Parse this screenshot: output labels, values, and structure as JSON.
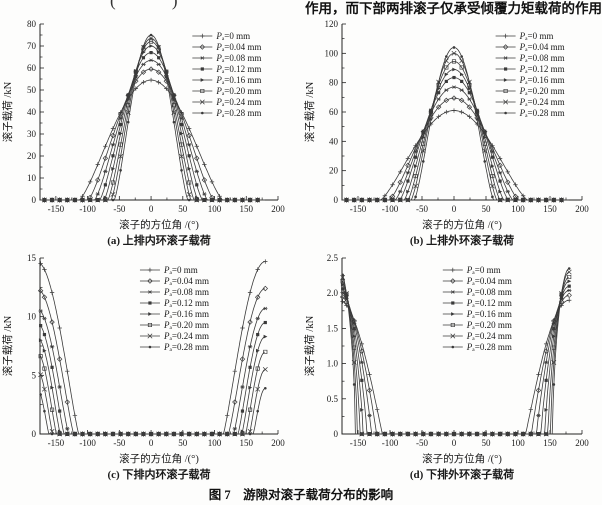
{
  "page": {
    "top_text": "作用，而下部两排滚子仅承受倾覆力矩载荷的作用",
    "top_left_fragment": "(    )",
    "figure_caption": "图 7　游隙对滚子载荷分布的影响"
  },
  "chart_data": [
    {
      "id": "a",
      "type": "line",
      "model": "bell",
      "caption": "(a) 上排内环滚子载荷",
      "xlabel": "滚子的方位角 /(°)",
      "ylabel": "滚子载荷 /kN",
      "xlim": [
        -175,
        200
      ],
      "ylim": [
        0,
        80
      ],
      "xticks": [
        -150,
        -100,
        -50,
        0,
        50,
        100,
        150,
        200
      ],
      "xtick_labels": [
        "-150",
        "-100",
        "-50",
        "0",
        "50",
        "100",
        "150",
        "200"
      ],
      "yticks": [
        0,
        10,
        20,
        30,
        40,
        50,
        60,
        70,
        80
      ],
      "ytick_labels": [
        "0",
        "10",
        "20",
        "30",
        "40",
        "50",
        "60",
        "70",
        "80"
      ],
      "legend_pos": "right",
      "grid": false,
      "series": [
        {
          "name": "Pₐ=0 mm",
          "marker": "plus",
          "peak": 54.5,
          "half_width": 113,
          "exp": 1.3
        },
        {
          "name": "Pₐ=0.04 mm",
          "marker": "odiamond",
          "peak": 59.5,
          "half_width": 99,
          "exp": 1.3
        },
        {
          "name": "Pₐ=0.08 mm",
          "marker": "asterisk",
          "peak": 63.5,
          "half_width": 89,
          "exp": 1.3
        },
        {
          "name": "Pₐ=0.12 mm",
          "marker": "fsquare",
          "peak": 67,
          "half_width": 81,
          "exp": 1.3
        },
        {
          "name": "Pₐ=0.16 mm",
          "marker": "rtri",
          "peak": 70,
          "half_width": 74,
          "exp": 1.3
        },
        {
          "name": "Pₐ=0.20 mm",
          "marker": "osquare",
          "peak": 72,
          "half_width": 68,
          "exp": 1.3
        },
        {
          "name": "Pₐ=0.24 mm",
          "marker": "xcross",
          "peak": 73.5,
          "half_width": 63,
          "exp": 1.3
        },
        {
          "name": "Pₐ=0.28 mm",
          "marker": "fcircle",
          "peak": 75,
          "half_width": 58,
          "exp": 1.3
        }
      ]
    },
    {
      "id": "b",
      "type": "line",
      "model": "bell",
      "caption": "(b) 上排外环滚子载荷",
      "xlabel": "滚子的方位角 /(°)",
      "ylabel": "滚子载荷 /kN",
      "xlim": [
        -175,
        200
      ],
      "ylim": [
        0,
        120
      ],
      "xticks": [
        -150,
        -100,
        -50,
        0,
        50,
        100,
        150,
        200
      ],
      "xtick_labels": [
        "-150",
        "-100",
        "-50",
        "0",
        "50",
        "100",
        "150",
        "200"
      ],
      "yticks": [
        0,
        20,
        40,
        60,
        80,
        100,
        120
      ],
      "ytick_labels": [
        "0",
        "20",
        "40",
        "60",
        "80",
        "100",
        "120"
      ],
      "legend_pos": "right",
      "grid": false,
      "series": [
        {
          "name": "Pₐ=0 mm",
          "marker": "plus",
          "peak": 61,
          "half_width": 115,
          "exp": 1.3
        },
        {
          "name": "Pₐ=0.04 mm",
          "marker": "odiamond",
          "peak": 69.5,
          "half_width": 101,
          "exp": 1.3
        },
        {
          "name": "Pₐ=0.08 mm",
          "marker": "asterisk",
          "peak": 77,
          "half_width": 92,
          "exp": 1.3
        },
        {
          "name": "Pₐ=0.12 mm",
          "marker": "fsquare",
          "peak": 83.5,
          "half_width": 85,
          "exp": 1.3
        },
        {
          "name": "Pₐ=0.16 mm",
          "marker": "rtri",
          "peak": 89,
          "half_width": 78,
          "exp": 1.3
        },
        {
          "name": "Pₐ=0.20 mm",
          "marker": "osquare",
          "peak": 94.5,
          "half_width": 72,
          "exp": 1.3
        },
        {
          "name": "Pₐ=0.24 mm",
          "marker": "xcross",
          "peak": 100,
          "half_width": 67,
          "exp": 1.3
        },
        {
          "name": "Pₐ=0.28 mm",
          "marker": "fcircle",
          "peak": 104,
          "half_width": 62,
          "exp": 1.3
        }
      ]
    },
    {
      "id": "c",
      "type": "line",
      "model": "edge",
      "caption": "(c) 下排内环滚子载荷",
      "xlabel": "滚子的方位角 /(°)",
      "ylabel": "滚子载荷 /kN",
      "xlim": [
        -175,
        200
      ],
      "ylim": [
        0,
        15
      ],
      "xticks": [
        -150,
        -100,
        -50,
        0,
        50,
        100,
        150,
        200
      ],
      "xtick_labels": [
        "-150",
        "-100",
        "-50",
        "0",
        "50",
        "100",
        "150",
        "200"
      ],
      "yticks": [
        0,
        5,
        10,
        15
      ],
      "ytick_labels": [
        "0",
        "5",
        "10",
        "15"
      ],
      "legend_pos": "center",
      "grid": false,
      "series": [
        {
          "name": "Pₐ=0 mm",
          "marker": "plus",
          "edge_value": 14.7,
          "start_angle": 114,
          "exp": 1.15
        },
        {
          "name": "Pₐ=0.04 mm",
          "marker": "odiamond",
          "edge_value": 12.4,
          "start_angle": 122,
          "exp": 1.15
        },
        {
          "name": "Pₐ=0.08 mm",
          "marker": "asterisk",
          "edge_value": 10.7,
          "start_angle": 130,
          "exp": 1.15
        },
        {
          "name": "Pₐ=0.12 mm",
          "marker": "fsquare",
          "edge_value": 9.5,
          "start_angle": 137,
          "exp": 1.15
        },
        {
          "name": "Pₐ=0.16 mm",
          "marker": "rtri",
          "edge_value": 8.3,
          "start_angle": 143,
          "exp": 1.15
        },
        {
          "name": "Pₐ=0.20 mm",
          "marker": "osquare",
          "edge_value": 7.0,
          "start_angle": 149,
          "exp": 1.15
        },
        {
          "name": "Pₐ=0.24 mm",
          "marker": "xcross",
          "edge_value": 5.5,
          "start_angle": 155,
          "exp": 1.15
        },
        {
          "name": "Pₐ=0.28 mm",
          "marker": "fcircle",
          "edge_value": 3.9,
          "start_angle": 161,
          "exp": 1.15
        }
      ]
    },
    {
      "id": "d",
      "type": "line",
      "model": "edge",
      "caption": "(d) 下排外环滚子载荷",
      "xlabel": "滚子的方位角 /(°)",
      "ylabel": "滚子载荷 /kN",
      "xlim": [
        -175,
        200
      ],
      "ylim": [
        0,
        2.5
      ],
      "xticks": [
        -150,
        -100,
        -50,
        0,
        50,
        100,
        150,
        200
      ],
      "xtick_labels": [
        "-150",
        "-100",
        "-50",
        "0",
        "50",
        "100",
        "150",
        "200"
      ],
      "yticks": [
        0,
        0.5,
        1.0,
        1.5,
        2.0,
        2.5
      ],
      "ytick_labels": [
        "0",
        "0.5",
        "1.0",
        "1.5",
        "2.0",
        "2.5"
      ],
      "legend_pos": "center",
      "grid": false,
      "series": [
        {
          "name": "Pₐ=0 mm",
          "marker": "plus",
          "edge_value": 1.9,
          "start_angle": 112,
          "exp": 1.0
        },
        {
          "name": "Pₐ=0.04 mm",
          "marker": "odiamond",
          "edge_value": 1.97,
          "start_angle": 121,
          "exp": 0.93
        },
        {
          "name": "Pₐ=0.08 mm",
          "marker": "asterisk",
          "edge_value": 2.04,
          "start_angle": 129,
          "exp": 0.86
        },
        {
          "name": "Pₐ=0.12 mm",
          "marker": "fsquare",
          "edge_value": 2.1,
          "start_angle": 136,
          "exp": 0.8
        },
        {
          "name": "Pₐ=0.16 mm",
          "marker": "rtri",
          "edge_value": 2.17,
          "start_angle": 142,
          "exp": 0.74
        },
        {
          "name": "Pₐ=0.20 mm",
          "marker": "osquare",
          "edge_value": 2.23,
          "start_angle": 147,
          "exp": 0.68
        },
        {
          "name": "Pₐ=0.24 mm",
          "marker": "xcross",
          "edge_value": 2.3,
          "start_angle": 151,
          "exp": 0.62
        },
        {
          "name": "Pₐ=0.28 mm",
          "marker": "fcircle",
          "edge_value": 2.35,
          "start_angle": 154,
          "exp": 0.57
        }
      ]
    }
  ]
}
